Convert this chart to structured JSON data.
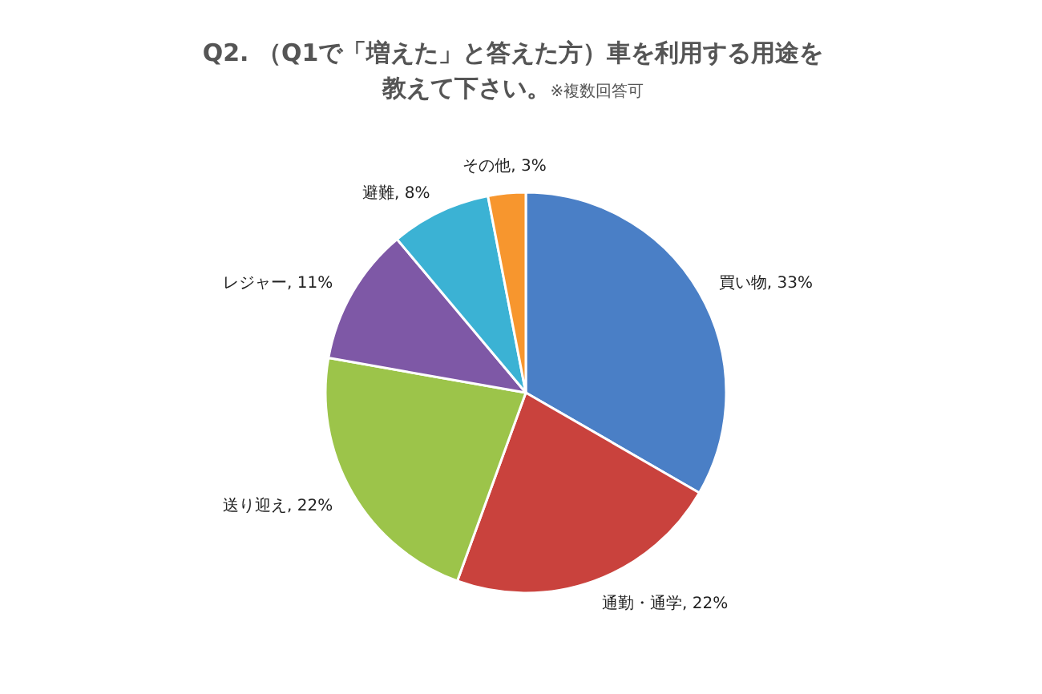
{
  "chart_data": {
    "type": "pie",
    "title": "Q2. （Q1で「増えた」と答えた方）車を利用する用途を教えて下さい。",
    "annotations": [
      "※複数回答可"
    ],
    "categories": [
      "買い物",
      "通勤・通学",
      "送り迎え",
      "レジャー",
      "避難",
      "その他"
    ],
    "values": [
      33,
      22,
      22,
      11,
      8,
      3
    ],
    "value_labels": [
      "33%",
      "22%",
      "22%",
      "11%",
      "8%",
      "3%"
    ],
    "colors": [
      "#4a7fc6",
      "#c9423d",
      "#9cc44a",
      "#7e58a6",
      "#3bb2d4",
      "#f7962e"
    ]
  }
}
